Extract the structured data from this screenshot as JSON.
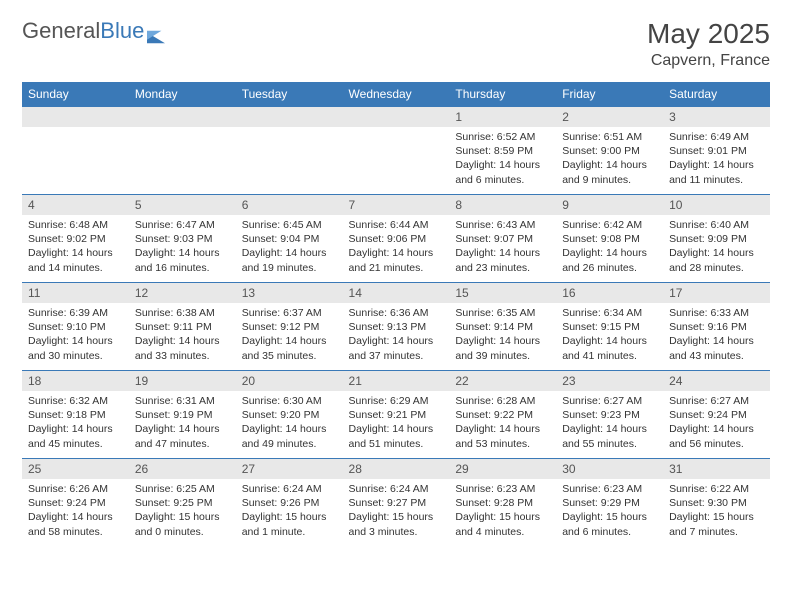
{
  "brand": {
    "part1": "General",
    "part2": "Blue"
  },
  "title": "May 2025",
  "location": "Capvern, France",
  "colors": {
    "header_bg": "#3a79b7",
    "header_fg": "#ffffff",
    "daynum_bg": "#e8e8e8",
    "rule": "#3a79b7",
    "text": "#333333",
    "page_bg": "#ffffff"
  },
  "weekdays": [
    "Sunday",
    "Monday",
    "Tuesday",
    "Wednesday",
    "Thursday",
    "Friday",
    "Saturday"
  ],
  "weeks": [
    [
      null,
      null,
      null,
      null,
      {
        "n": "1",
        "sr": "6:52 AM",
        "ss": "8:59 PM",
        "dl": "14 hours and 6 minutes."
      },
      {
        "n": "2",
        "sr": "6:51 AM",
        "ss": "9:00 PM",
        "dl": "14 hours and 9 minutes."
      },
      {
        "n": "3",
        "sr": "6:49 AM",
        "ss": "9:01 PM",
        "dl": "14 hours and 11 minutes."
      }
    ],
    [
      {
        "n": "4",
        "sr": "6:48 AM",
        "ss": "9:02 PM",
        "dl": "14 hours and 14 minutes."
      },
      {
        "n": "5",
        "sr": "6:47 AM",
        "ss": "9:03 PM",
        "dl": "14 hours and 16 minutes."
      },
      {
        "n": "6",
        "sr": "6:45 AM",
        "ss": "9:04 PM",
        "dl": "14 hours and 19 minutes."
      },
      {
        "n": "7",
        "sr": "6:44 AM",
        "ss": "9:06 PM",
        "dl": "14 hours and 21 minutes."
      },
      {
        "n": "8",
        "sr": "6:43 AM",
        "ss": "9:07 PM",
        "dl": "14 hours and 23 minutes."
      },
      {
        "n": "9",
        "sr": "6:42 AM",
        "ss": "9:08 PM",
        "dl": "14 hours and 26 minutes."
      },
      {
        "n": "10",
        "sr": "6:40 AM",
        "ss": "9:09 PM",
        "dl": "14 hours and 28 minutes."
      }
    ],
    [
      {
        "n": "11",
        "sr": "6:39 AM",
        "ss": "9:10 PM",
        "dl": "14 hours and 30 minutes."
      },
      {
        "n": "12",
        "sr": "6:38 AM",
        "ss": "9:11 PM",
        "dl": "14 hours and 33 minutes."
      },
      {
        "n": "13",
        "sr": "6:37 AM",
        "ss": "9:12 PM",
        "dl": "14 hours and 35 minutes."
      },
      {
        "n": "14",
        "sr": "6:36 AM",
        "ss": "9:13 PM",
        "dl": "14 hours and 37 minutes."
      },
      {
        "n": "15",
        "sr": "6:35 AM",
        "ss": "9:14 PM",
        "dl": "14 hours and 39 minutes."
      },
      {
        "n": "16",
        "sr": "6:34 AM",
        "ss": "9:15 PM",
        "dl": "14 hours and 41 minutes."
      },
      {
        "n": "17",
        "sr": "6:33 AM",
        "ss": "9:16 PM",
        "dl": "14 hours and 43 minutes."
      }
    ],
    [
      {
        "n": "18",
        "sr": "6:32 AM",
        "ss": "9:18 PM",
        "dl": "14 hours and 45 minutes."
      },
      {
        "n": "19",
        "sr": "6:31 AM",
        "ss": "9:19 PM",
        "dl": "14 hours and 47 minutes."
      },
      {
        "n": "20",
        "sr": "6:30 AM",
        "ss": "9:20 PM",
        "dl": "14 hours and 49 minutes."
      },
      {
        "n": "21",
        "sr": "6:29 AM",
        "ss": "9:21 PM",
        "dl": "14 hours and 51 minutes."
      },
      {
        "n": "22",
        "sr": "6:28 AM",
        "ss": "9:22 PM",
        "dl": "14 hours and 53 minutes."
      },
      {
        "n": "23",
        "sr": "6:27 AM",
        "ss": "9:23 PM",
        "dl": "14 hours and 55 minutes."
      },
      {
        "n": "24",
        "sr": "6:27 AM",
        "ss": "9:24 PM",
        "dl": "14 hours and 56 minutes."
      }
    ],
    [
      {
        "n": "25",
        "sr": "6:26 AM",
        "ss": "9:24 PM",
        "dl": "14 hours and 58 minutes."
      },
      {
        "n": "26",
        "sr": "6:25 AM",
        "ss": "9:25 PM",
        "dl": "15 hours and 0 minutes."
      },
      {
        "n": "27",
        "sr": "6:24 AM",
        "ss": "9:26 PM",
        "dl": "15 hours and 1 minute."
      },
      {
        "n": "28",
        "sr": "6:24 AM",
        "ss": "9:27 PM",
        "dl": "15 hours and 3 minutes."
      },
      {
        "n": "29",
        "sr": "6:23 AM",
        "ss": "9:28 PM",
        "dl": "15 hours and 4 minutes."
      },
      {
        "n": "30",
        "sr": "6:23 AM",
        "ss": "9:29 PM",
        "dl": "15 hours and 6 minutes."
      },
      {
        "n": "31",
        "sr": "6:22 AM",
        "ss": "9:30 PM",
        "dl": "15 hours and 7 minutes."
      }
    ]
  ],
  "labels": {
    "sunrise": "Sunrise:",
    "sunset": "Sunset:",
    "daylight": "Daylight:"
  }
}
